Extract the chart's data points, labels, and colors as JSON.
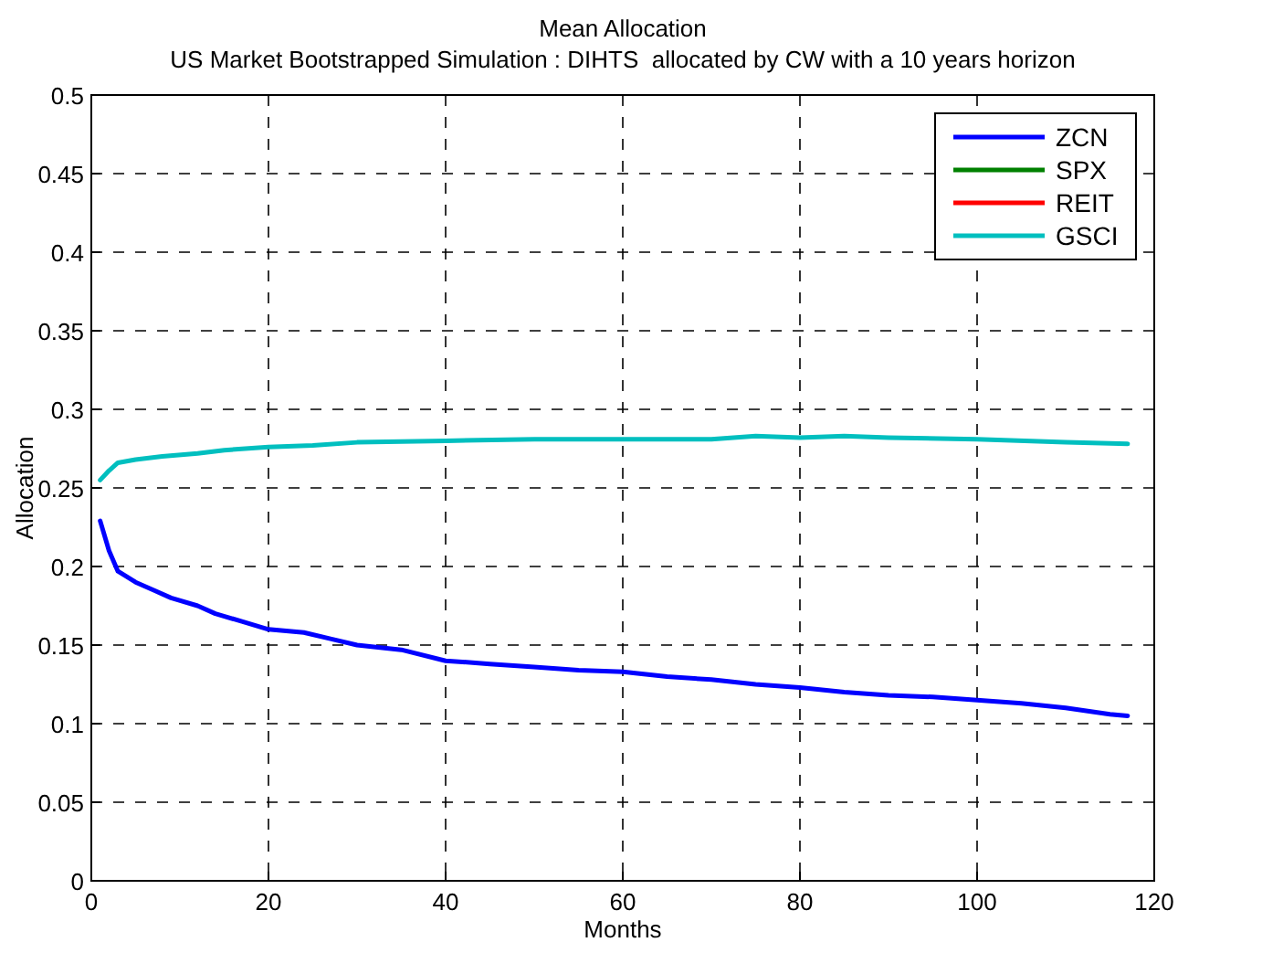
{
  "chart_data": {
    "type": "line",
    "title": "Mean Allocation",
    "subtitle": "US Market Bootstrapped Simulation : DIHTS  allocated by CW with a 10 years horizon",
    "xlabel": "Months",
    "ylabel": "Allocation",
    "xlim": [
      0,
      120
    ],
    "xticks": [
      0,
      20,
      40,
      60,
      80,
      100,
      120
    ],
    "ylim": [
      0,
      0.5
    ],
    "yticks": [
      0,
      0.05,
      0.1,
      0.15,
      0.2,
      0.25,
      0.3,
      0.35,
      0.4,
      0.45,
      0.5
    ],
    "grid": true,
    "legend": "top right",
    "line_style": "solid",
    "series": [
      {
        "name": "ZCN",
        "color": "#0000ff",
        "x": [
          1,
          2,
          3,
          5,
          7,
          9,
          12,
          14,
          17,
          20,
          24,
          27,
          30,
          35,
          40,
          45,
          50,
          55,
          60,
          65,
          70,
          75,
          80,
          85,
          90,
          95,
          100,
          105,
          110,
          115,
          117
        ],
        "values": [
          0.229,
          0.21,
          0.197,
          0.19,
          0.185,
          0.18,
          0.175,
          0.17,
          0.165,
          0.16,
          0.158,
          0.154,
          0.15,
          0.147,
          0.14,
          0.138,
          0.136,
          0.134,
          0.133,
          0.13,
          0.128,
          0.125,
          0.123,
          0.12,
          0.118,
          0.117,
          0.115,
          0.113,
          0.11,
          0.106,
          0.105
        ]
      },
      {
        "name": "SPX",
        "color": "#008000"
      },
      {
        "name": "REIT",
        "color": "#ff0000"
      },
      {
        "name": "GSCI",
        "color": "#00bfbf",
        "x": [
          1,
          2,
          3,
          5,
          8,
          12,
          15,
          20,
          25,
          30,
          40,
          50,
          60,
          70,
          75,
          80,
          85,
          90,
          100,
          110,
          117
        ],
        "values": [
          0.255,
          0.261,
          0.266,
          0.268,
          0.27,
          0.272,
          0.274,
          0.276,
          0.277,
          0.279,
          0.28,
          0.281,
          0.281,
          0.281,
          0.283,
          0.282,
          0.283,
          0.282,
          0.281,
          0.279,
          0.278
        ]
      }
    ]
  }
}
